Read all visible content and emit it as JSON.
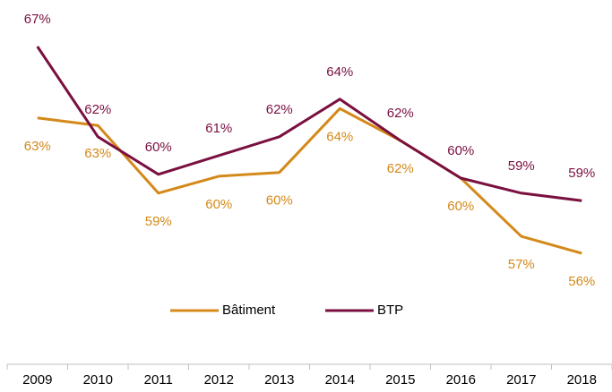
{
  "chart_data": {
    "type": "line",
    "categories": [
      "2009",
      "2010",
      "2011",
      "2012",
      "2013",
      "2014",
      "2015",
      "2016",
      "2017",
      "2018"
    ],
    "series": [
      {
        "name": "Bâtiment",
        "color": "#d4891a",
        "values": [
          63.4,
          63.0,
          59.4,
          60.3,
          60.5,
          63.9,
          62.2,
          60.2,
          57.1,
          56.2
        ],
        "value_labels": [
          "63%",
          "63%",
          "59%",
          "60%",
          "60%",
          "64%",
          "62%",
          "60%",
          "57%",
          "56%"
        ]
      },
      {
        "name": "BTP",
        "color": "#7a1040",
        "values": [
          67.2,
          62.4,
          60.4,
          61.4,
          62.4,
          64.4,
          62.2,
          60.2,
          59.4,
          59.0
        ],
        "value_labels": [
          "67%",
          "62%",
          "60%",
          "61%",
          "62%",
          "64%",
          "62%",
          "60%",
          "59%",
          "59%"
        ]
      }
    ]
  }
}
